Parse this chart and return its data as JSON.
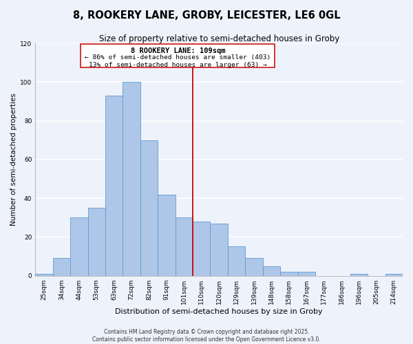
{
  "title": "8, ROOKERY LANE, GROBY, LEICESTER, LE6 0GL",
  "subtitle": "Size of property relative to semi-detached houses in Groby",
  "xlabel": "Distribution of semi-detached houses by size in Groby",
  "ylabel": "Number of semi-detached properties",
  "bins": [
    "25sqm",
    "34sqm",
    "44sqm",
    "53sqm",
    "63sqm",
    "72sqm",
    "82sqm",
    "91sqm",
    "101sqm",
    "110sqm",
    "120sqm",
    "129sqm",
    "139sqm",
    "148sqm",
    "158sqm",
    "167sqm",
    "177sqm",
    "186sqm",
    "196sqm",
    "205sqm",
    "214sqm"
  ],
  "values": [
    1,
    9,
    30,
    35,
    93,
    100,
    70,
    42,
    30,
    28,
    27,
    15,
    9,
    5,
    2,
    2,
    0,
    0,
    1,
    0,
    1
  ],
  "bar_color": "#aec6e8",
  "bar_edge_color": "#5b9bd5",
  "bar_width": 1.0,
  "vline_color": "#cc0000",
  "annotation_title": "8 ROOKERY LANE: 109sqm",
  "annotation_line1": "← 86% of semi-detached houses are smaller (403)",
  "annotation_line2": "13% of semi-detached houses are larger (63) →",
  "annotation_box_color": "#ffffff",
  "annotation_box_edge": "#cc0000",
  "ylim": [
    0,
    120
  ],
  "yticks": [
    0,
    20,
    40,
    60,
    80,
    100,
    120
  ],
  "footer1": "Contains HM Land Registry data © Crown copyright and database right 2025.",
  "footer2": "Contains public sector information licensed under the Open Government Licence v3.0.",
  "background_color": "#eef2fb",
  "grid_color": "#ffffff",
  "title_fontsize": 10.5,
  "subtitle_fontsize": 8.5,
  "xlabel_fontsize": 8,
  "ylabel_fontsize": 7.5,
  "tick_fontsize": 6.5,
  "footer_fontsize": 5.5,
  "ann_title_fontsize": 7.5,
  "ann_text_fontsize": 6.8
}
